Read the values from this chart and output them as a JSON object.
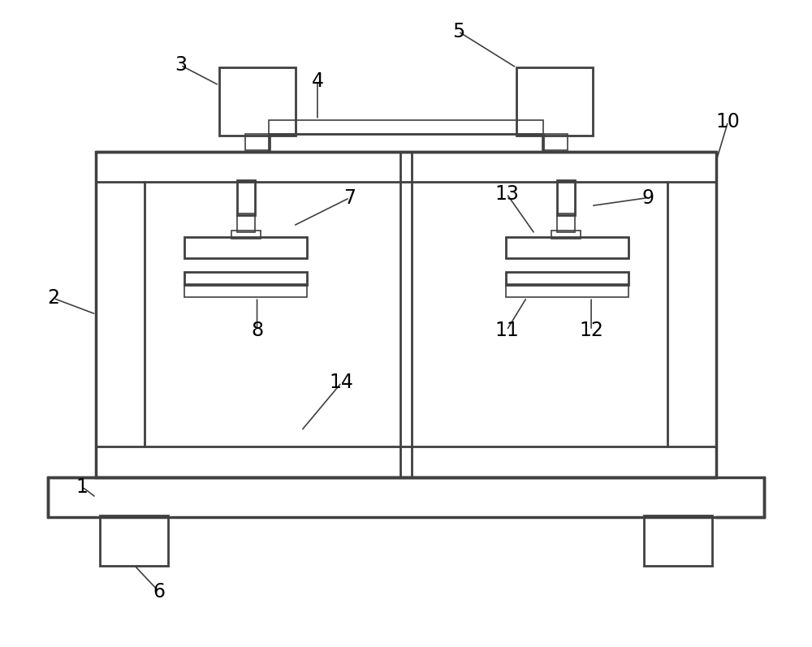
{
  "bg_color": "#ffffff",
  "line_color": "#404040",
  "lw_thin": 1.2,
  "lw_main": 2.0,
  "lw_thick": 2.5,
  "figsize": [
    10.0,
    7.97
  ],
  "dpi": 100
}
